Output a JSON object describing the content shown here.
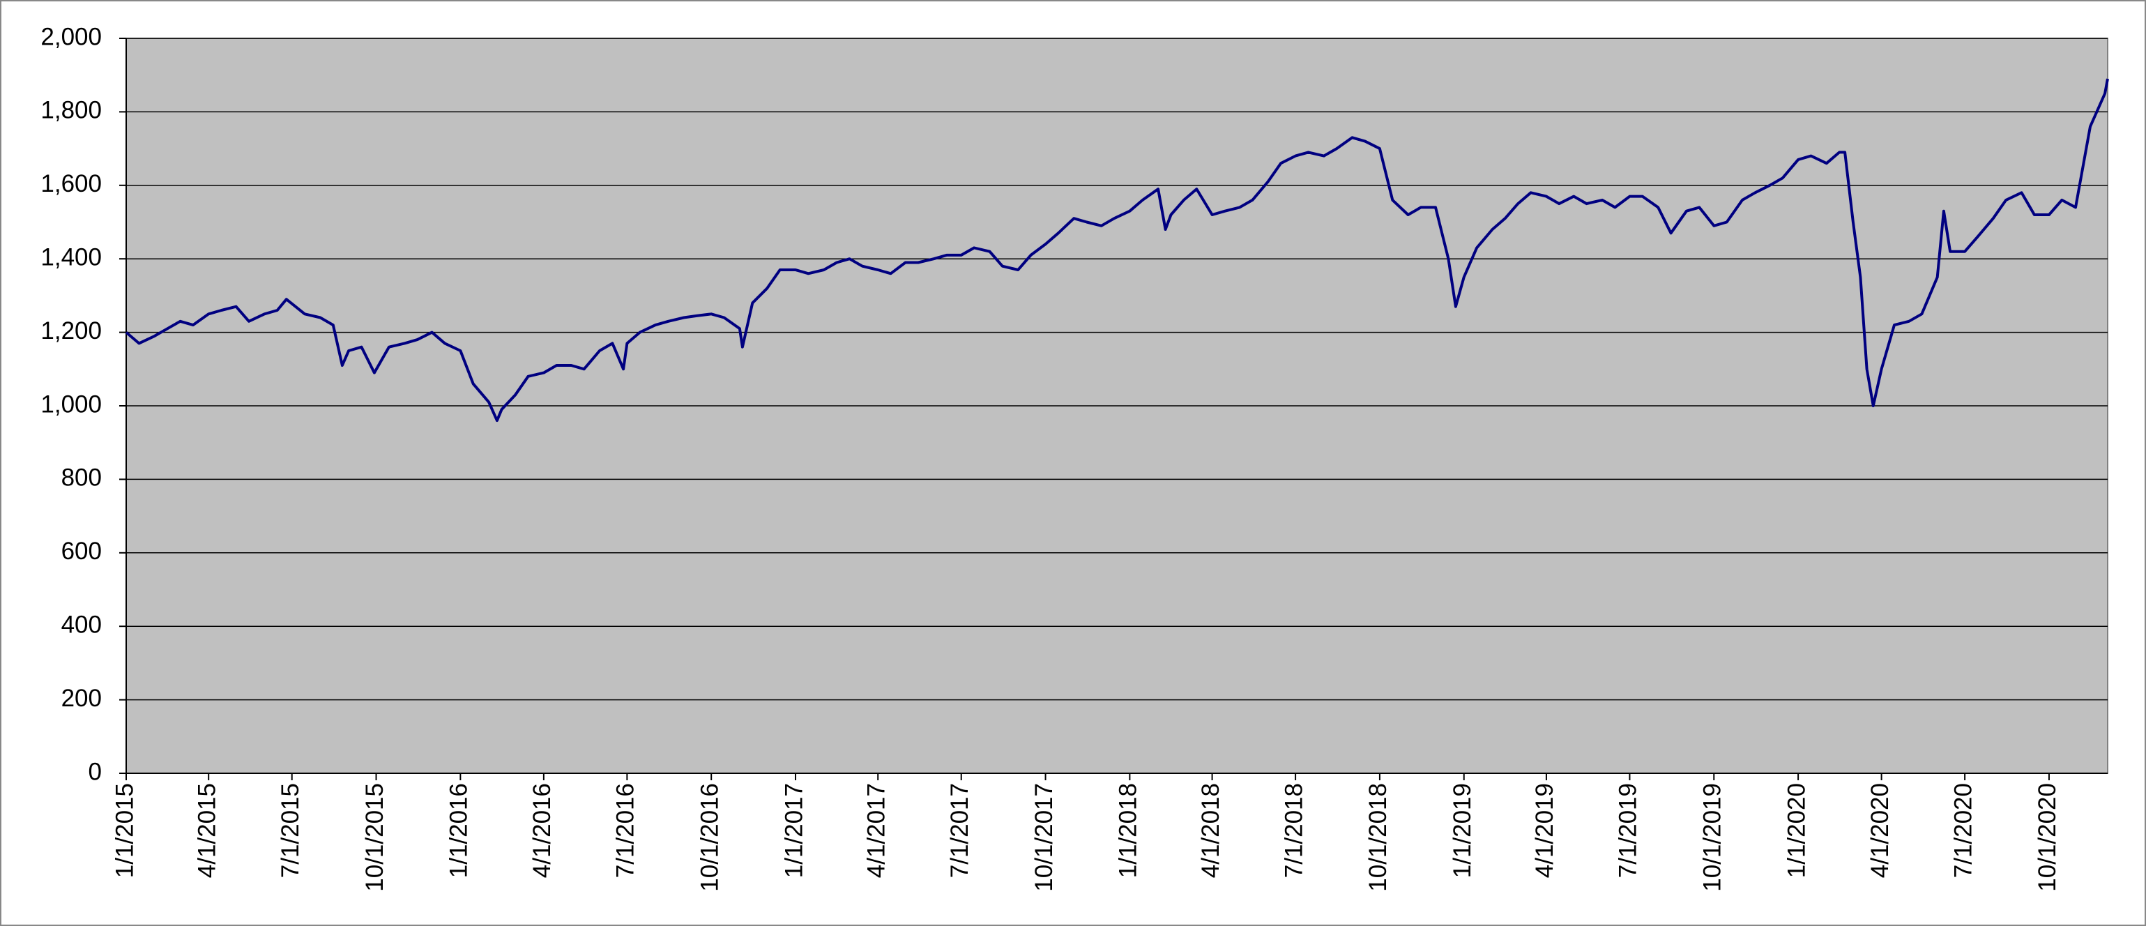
{
  "chart_data": {
    "type": "line",
    "x": [
      "2015-01-01",
      "2015-01-15",
      "2015-02-01",
      "2015-02-15",
      "2015-03-01",
      "2015-03-15",
      "2015-04-01",
      "2015-04-15",
      "2015-05-01",
      "2015-05-15",
      "2015-06-01",
      "2015-06-15",
      "2015-06-25",
      "2015-07-15",
      "2015-08-01",
      "2015-08-15",
      "2015-08-25",
      "2015-09-01",
      "2015-09-15",
      "2015-09-29",
      "2015-10-15",
      "2015-11-01",
      "2015-11-15",
      "2015-12-01",
      "2015-12-15",
      "2016-01-01",
      "2016-01-15",
      "2016-02-01",
      "2016-02-10",
      "2016-02-15",
      "2016-03-01",
      "2016-03-15",
      "2016-04-01",
      "2016-04-15",
      "2016-05-01",
      "2016-05-15",
      "2016-06-01",
      "2016-06-15",
      "2016-06-27",
      "2016-07-01",
      "2016-07-15",
      "2016-08-01",
      "2016-08-15",
      "2016-09-01",
      "2016-09-15",
      "2016-10-01",
      "2016-10-15",
      "2016-11-01",
      "2016-11-04",
      "2016-11-15",
      "2016-12-01",
      "2016-12-15",
      "2017-01-01",
      "2017-01-15",
      "2017-02-01",
      "2017-02-15",
      "2017-03-01",
      "2017-03-15",
      "2017-04-01",
      "2017-04-15",
      "2017-05-01",
      "2017-05-15",
      "2017-06-01",
      "2017-06-15",
      "2017-07-01",
      "2017-07-15",
      "2017-08-01",
      "2017-08-15",
      "2017-09-01",
      "2017-09-15",
      "2017-10-01",
      "2017-10-15",
      "2017-11-01",
      "2017-11-15",
      "2017-12-01",
      "2017-12-15",
      "2018-01-01",
      "2018-01-15",
      "2018-02-01",
      "2018-02-09",
      "2018-02-15",
      "2018-03-01",
      "2018-03-15",
      "2018-04-01",
      "2018-04-15",
      "2018-05-01",
      "2018-05-15",
      "2018-06-01",
      "2018-06-15",
      "2018-07-01",
      "2018-07-15",
      "2018-08-01",
      "2018-08-15",
      "2018-09-01",
      "2018-09-15",
      "2018-10-01",
      "2018-10-15",
      "2018-11-01",
      "2018-11-15",
      "2018-12-01",
      "2018-12-15",
      "2018-12-23",
      "2019-01-01",
      "2019-01-15",
      "2019-02-01",
      "2019-02-15",
      "2019-03-01",
      "2019-03-15",
      "2019-04-01",
      "2019-04-15",
      "2019-05-01",
      "2019-05-15",
      "2019-06-01",
      "2019-06-15",
      "2019-07-01",
      "2019-07-15",
      "2019-08-01",
      "2019-08-15",
      "2019-09-01",
      "2019-09-15",
      "2019-10-01",
      "2019-10-15",
      "2019-11-01",
      "2019-11-15",
      "2019-12-01",
      "2019-12-15",
      "2020-01-01",
      "2020-01-15",
      "2020-02-01",
      "2020-02-15",
      "2020-02-21",
      "2020-03-01",
      "2020-03-09",
      "2020-03-16",
      "2020-03-23",
      "2020-04-01",
      "2020-04-15",
      "2020-05-01",
      "2020-05-15",
      "2020-06-01",
      "2020-06-08",
      "2020-06-15",
      "2020-07-01",
      "2020-07-15",
      "2020-08-01",
      "2020-08-15",
      "2020-09-01",
      "2020-09-15",
      "2020-10-01",
      "2020-10-15",
      "2020-10-30",
      "2020-11-15",
      "2020-12-01",
      "2020-12-04"
    ],
    "series": [
      {
        "color": "#000080",
        "values": [
          1200,
          1170,
          1190,
          1210,
          1230,
          1220,
          1250,
          1260,
          1270,
          1230,
          1250,
          1260,
          1290,
          1250,
          1240,
          1220,
          1110,
          1150,
          1160,
          1090,
          1160,
          1170,
          1180,
          1200,
          1170,
          1150,
          1060,
          1010,
          960,
          990,
          1030,
          1080,
          1090,
          1110,
          1110,
          1100,
          1150,
          1170,
          1100,
          1170,
          1200,
          1220,
          1230,
          1240,
          1245,
          1250,
          1240,
          1210,
          1160,
          1280,
          1320,
          1370,
          1370,
          1360,
          1370,
          1390,
          1400,
          1380,
          1370,
          1360,
          1390,
          1390,
          1400,
          1410,
          1410,
          1430,
          1420,
          1380,
          1370,
          1410,
          1440,
          1470,
          1510,
          1500,
          1490,
          1510,
          1530,
          1560,
          1590,
          1480,
          1520,
          1560,
          1590,
          1520,
          1530,
          1540,
          1560,
          1610,
          1660,
          1680,
          1690,
          1680,
          1700,
          1730,
          1720,
          1700,
          1560,
          1520,
          1540,
          1540,
          1400,
          1270,
          1350,
          1430,
          1480,
          1510,
          1550,
          1580,
          1570,
          1550,
          1570,
          1550,
          1560,
          1540,
          1570,
          1570,
          1540,
          1470,
          1530,
          1540,
          1490,
          1500,
          1560,
          1580,
          1600,
          1620,
          1670,
          1680,
          1660,
          1690,
          1690,
          1500,
          1350,
          1100,
          1000,
          1100,
          1220,
          1230,
          1250,
          1350,
          1530,
          1420,
          1420,
          1460,
          1510,
          1560,
          1580,
          1520,
          1520,
          1560,
          1540,
          1760,
          1850,
          1890
        ]
      }
    ],
    "xlim": [
      "2015-01-01",
      "2020-12-04"
    ],
    "xticks": [
      {
        "value": "2015-01-01",
        "label": "1/1/2015"
      },
      {
        "value": "2015-04-01",
        "label": "4/1/2015"
      },
      {
        "value": "2015-07-01",
        "label": "7/1/2015"
      },
      {
        "value": "2015-10-01",
        "label": "10/1/2015"
      },
      {
        "value": "2016-01-01",
        "label": "1/1/2016"
      },
      {
        "value": "2016-04-01",
        "label": "4/1/2016"
      },
      {
        "value": "2016-07-01",
        "label": "7/1/2016"
      },
      {
        "value": "2016-10-01",
        "label": "10/1/2016"
      },
      {
        "value": "2017-01-01",
        "label": "1/1/2017"
      },
      {
        "value": "2017-04-01",
        "label": "4/1/2017"
      },
      {
        "value": "2017-07-01",
        "label": "7/1/2017"
      },
      {
        "value": "2017-10-01",
        "label": "10/1/2017"
      },
      {
        "value": "2018-01-01",
        "label": "1/1/2018"
      },
      {
        "value": "2018-04-01",
        "label": "4/1/2018"
      },
      {
        "value": "2018-07-01",
        "label": "7/1/2018"
      },
      {
        "value": "2018-10-01",
        "label": "10/1/2018"
      },
      {
        "value": "2019-01-01",
        "label": "1/1/2019"
      },
      {
        "value": "2019-04-01",
        "label": "4/1/2019"
      },
      {
        "value": "2019-07-01",
        "label": "7/1/2019"
      },
      {
        "value": "2019-10-01",
        "label": "10/1/2019"
      },
      {
        "value": "2020-01-01",
        "label": "1/1/2020"
      },
      {
        "value": "2020-04-01",
        "label": "4/1/2020"
      },
      {
        "value": "2020-07-01",
        "label": "7/1/2020"
      },
      {
        "value": "2020-10-01",
        "label": "10/1/2020"
      }
    ],
    "ylim": [
      0,
      2000
    ],
    "yticks": [
      0,
      {
        "value": 200,
        "label": "200"
      },
      400,
      600,
      800,
      {
        "value": 1000,
        "label": "1,000"
      },
      {
        "value": 1200,
        "label": "1,200"
      },
      {
        "value": 1400,
        "label": "1,400"
      },
      {
        "value": 1600,
        "label": "1,600"
      },
      {
        "value": 1800,
        "label": "1,800"
      },
      {
        "value": 2000,
        "label": "2,000"
      }
    ],
    "grid": true
  }
}
